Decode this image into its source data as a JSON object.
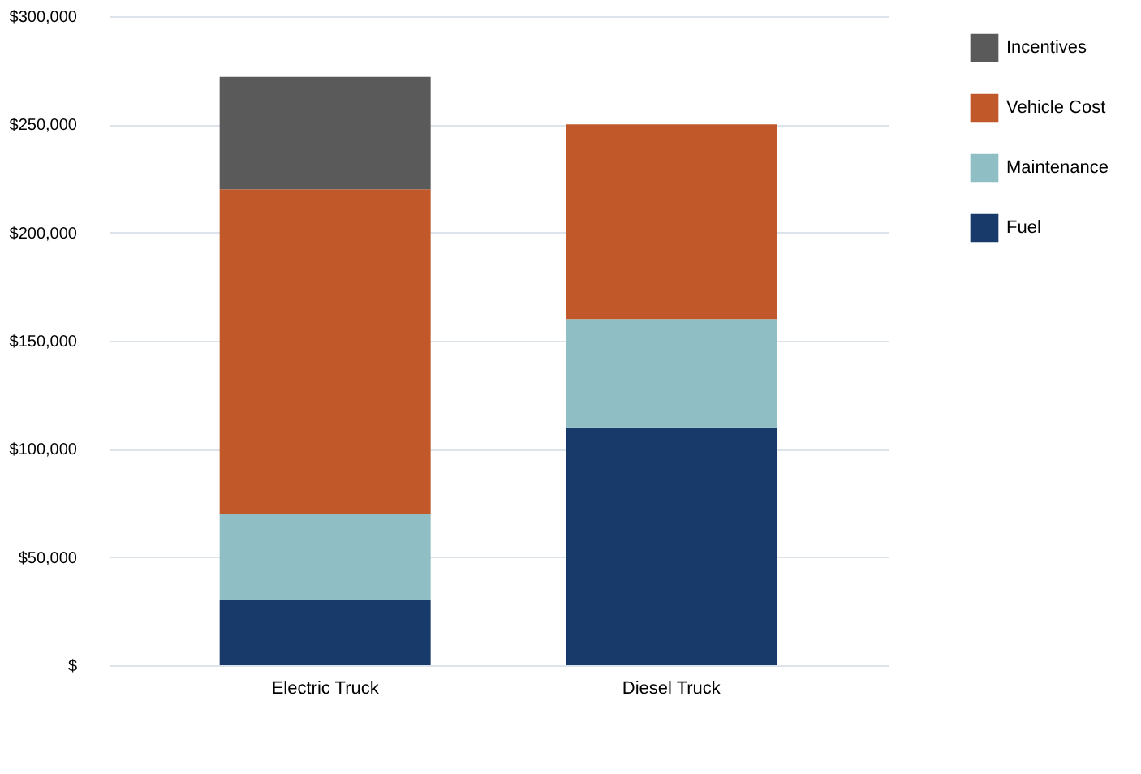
{
  "chart_data": {
    "type": "bar",
    "stacked": true,
    "categories": [
      "Electric Truck",
      "Diesel Truck"
    ],
    "series": [
      {
        "name": "Fuel",
        "color": "#173a6b",
        "values": [
          30000,
          110000
        ]
      },
      {
        "name": "Maintenance",
        "color": "#8fbfc4",
        "values": [
          40000,
          50000
        ]
      },
      {
        "name": "Vehicle Cost",
        "color": "#c0582a",
        "values": [
          150000,
          90000
        ]
      },
      {
        "name": "Incentives",
        "color": "#5a5a5a",
        "values": [
          52000,
          null
        ]
      }
    ],
    "ylim": [
      0,
      300000
    ],
    "yticks": [
      {
        "value": 0,
        "label": "$"
      },
      {
        "value": 50000,
        "label": "$50,000"
      },
      {
        "value": 100000,
        "label": "$100,000"
      },
      {
        "value": 150000,
        "label": "$150,000"
      },
      {
        "value": 200000,
        "label": "$200,000"
      },
      {
        "value": 250000,
        "label": "$250,000"
      },
      {
        "value": 300000,
        "label": "$300,000"
      }
    ],
    "grid": "y",
    "legend": "right"
  }
}
